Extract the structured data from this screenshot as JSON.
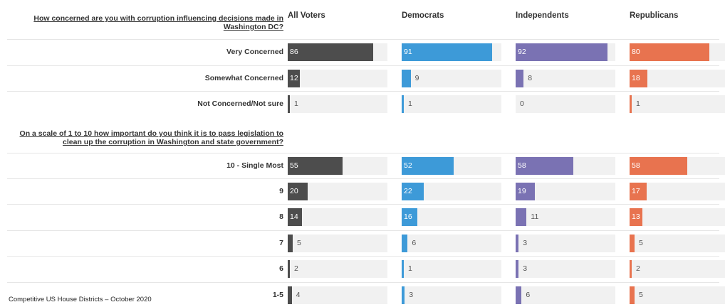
{
  "chart_data": {
    "type": "bar",
    "orientation": "horizontal",
    "series": [
      {
        "name": "All Voters",
        "color": "#4d4d4d"
      },
      {
        "name": "Democrats",
        "color": "#3d9ad8"
      },
      {
        "name": "Independents",
        "color": "#7a72b3"
      },
      {
        "name": "Republicans",
        "color": "#e8734f"
      }
    ],
    "questions": [
      {
        "text": "How concerned are you with corruption influencing decisions made in Washington DC?",
        "rows": [
          {
            "label": "Very Concerned",
            "values": [
              86,
              91,
              92,
              80
            ]
          },
          {
            "label": "Somewhat Concerned",
            "values": [
              12,
              9,
              8,
              18
            ]
          },
          {
            "label": "Not Concerned/Not sure",
            "values": [
              1,
              1,
              0,
              1
            ]
          }
        ]
      },
      {
        "text": "On a scale of 1 to 10 how important do you think it is to pass legislation to clean up the corruption in Washington and state government?",
        "rows": [
          {
            "label": "10 - Single Most",
            "values": [
              55,
              52,
              58,
              58
            ]
          },
          {
            "label": "9",
            "values": [
              20,
              22,
              19,
              17
            ]
          },
          {
            "label": "8",
            "values": [
              14,
              16,
              11,
              13
            ]
          },
          {
            "label": "7",
            "values": [
              5,
              6,
              3,
              5
            ]
          },
          {
            "label": "6",
            "values": [
              2,
              1,
              3,
              2
            ]
          },
          {
            "label": "1-5",
            "values": [
              4,
              3,
              6,
              5
            ]
          }
        ]
      }
    ],
    "xlim": [
      0,
      100
    ]
  },
  "footer": "Competitive US House Districts – October 2020"
}
